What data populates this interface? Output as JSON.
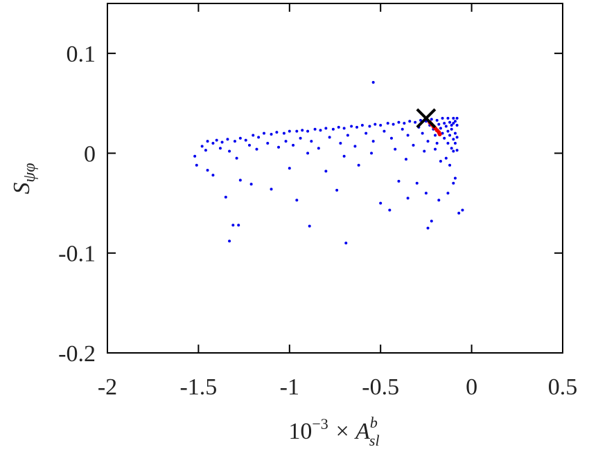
{
  "chart_data": {
    "type": "scatter",
    "xlabel": [
      "10",
      "−3",
      " × A",
      "b",
      "sl"
    ],
    "ylabel": [
      "S",
      "ψφ"
    ],
    "xlim": [
      -2,
      0.5
    ],
    "ylim": [
      -0.2,
      0.15
    ],
    "xticks": [
      -2,
      -1.5,
      -1,
      -0.5,
      0,
      0.5
    ],
    "yticks": [
      -0.2,
      -0.1,
      0,
      0.1
    ],
    "series": [
      {
        "color": "#0000ee",
        "x": [
          -0.54,
          -1.33,
          -1.31,
          -1.28,
          -0.89,
          -0.69,
          -0.24,
          -0.05,
          -0.07,
          -0.22,
          -0.45,
          -0.5,
          -0.18,
          -0.13,
          -1.35,
          -1.21,
          -0.96,
          -1.1,
          -0.74,
          -0.4,
          -0.8,
          -0.62,
          -0.1,
          -0.09,
          -1.42,
          -1.52,
          -1.51,
          -1.45,
          -1.27,
          -1.0,
          -0.3,
          -0.25,
          -0.35,
          -1.48,
          -1.45,
          -1.42,
          -1.4,
          -1.37,
          -1.34,
          -1.3,
          -1.27,
          -1.24,
          -1.2,
          -1.17,
          -1.14,
          -1.1,
          -1.07,
          -1.03,
          -1.0,
          -0.96,
          -0.93,
          -0.9,
          -0.86,
          -0.83,
          -0.8,
          -0.76,
          -0.73,
          -0.7,
          -0.66,
          -0.63,
          -0.6,
          -0.56,
          -0.53,
          -0.5,
          -0.46,
          -0.43,
          -0.4,
          -0.37,
          -0.34,
          -0.31,
          -0.28,
          -0.25,
          -0.22,
          -0.19,
          -0.16,
          -0.13,
          -0.1,
          -0.08,
          -1.46,
          -1.38,
          -1.33,
          -1.29,
          -1.22,
          -1.18,
          -1.12,
          -1.06,
          -1.02,
          -0.98,
          -0.94,
          -0.88,
          -0.84,
          -0.78,
          -0.72,
          -0.68,
          -0.64,
          -0.58,
          -0.54,
          -0.48,
          -0.44,
          -0.42,
          -0.38,
          -0.35,
          -0.32,
          -0.29,
          -0.27,
          -0.24,
          -0.23,
          -0.21,
          -0.2,
          -0.19,
          -0.18,
          -0.17,
          -0.16,
          -0.15,
          -0.15,
          -0.14,
          -0.13,
          -0.13,
          -0.12,
          -0.12,
          -0.11,
          -0.11,
          -0.11,
          -0.1,
          -0.1,
          -0.1,
          -0.09,
          -0.09,
          -0.09,
          -0.08,
          -0.08,
          -0.08,
          -0.14,
          -0.12,
          -0.17,
          -0.2,
          -0.26,
          -0.36,
          -0.55,
          -0.7,
          -0.9
        ],
        "y": [
          0.071,
          -0.088,
          -0.072,
          -0.072,
          -0.073,
          -0.09,
          -0.075,
          -0.057,
          -0.06,
          -0.068,
          -0.057,
          -0.05,
          -0.047,
          -0.04,
          -0.044,
          -0.031,
          -0.047,
          -0.036,
          -0.037,
          -0.028,
          -0.018,
          -0.012,
          -0.03,
          -0.025,
          -0.022,
          -0.003,
          -0.012,
          -0.017,
          -0.027,
          -0.015,
          -0.03,
          -0.04,
          -0.045,
          0.007,
          0.012,
          0.01,
          0.013,
          0.011,
          0.014,
          0.012,
          0.015,
          0.013,
          0.018,
          0.016,
          0.02,
          0.019,
          0.021,
          0.02,
          0.022,
          0.022,
          0.023,
          0.022,
          0.024,
          0.023,
          0.025,
          0.024,
          0.026,
          0.025,
          0.027,
          0.026,
          0.028,
          0.027,
          0.029,
          0.028,
          0.03,
          0.029,
          0.031,
          0.03,
          0.032,
          0.031,
          0.033,
          0.032,
          0.034,
          0.033,
          0.035,
          0.035,
          0.035,
          0.035,
          0.003,
          0.005,
          0.002,
          -0.005,
          0.008,
          0.004,
          0.01,
          0.006,
          0.012,
          0.008,
          0.015,
          0.012,
          0.005,
          0.016,
          0.01,
          0.018,
          0.007,
          0.02,
          0.012,
          0.022,
          0.015,
          0.004,
          0.024,
          0.018,
          0.008,
          0.026,
          0.02,
          0.012,
          0.028,
          0.024,
          0.018,
          0.01,
          0.029,
          0.025,
          0.02,
          0.015,
          0.03,
          0.027,
          0.022,
          0.01,
          0.031,
          0.018,
          0.028,
          0.024,
          0.005,
          0.03,
          0.014,
          0.002,
          0.032,
          0.02,
          0.01,
          0.028,
          0.016,
          0.003,
          -0.005,
          -0.012,
          -0.008,
          0.004,
          0.002,
          -0.006,
          0.0,
          -0.003,
          0.0
        ]
      },
      {
        "color": "#ee0000",
        "x": [
          -0.23,
          -0.22,
          -0.21,
          -0.2,
          -0.19,
          -0.18,
          -0.175
        ],
        "y": [
          0.031,
          0.029,
          0.027,
          0.025,
          0.023,
          0.021,
          0.019
        ]
      }
    ],
    "marker": {
      "x": -0.25,
      "y": 0.035,
      "color": "#000000"
    }
  }
}
